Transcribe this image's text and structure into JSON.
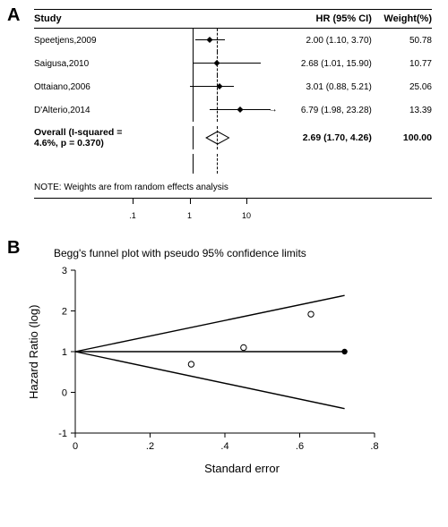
{
  "panelA": {
    "label": "A",
    "headers": {
      "study": "Study",
      "hrci": "HR (95% CI)",
      "weight": "Weight(%)"
    },
    "studies": [
      {
        "name": "Speetjens,2009",
        "hr": 2.0,
        "lo": 1.1,
        "hi": 3.7,
        "hrText": "2.00 (1.10, 3.70)",
        "weight": "50.78"
      },
      {
        "name": "Saigusa,2010",
        "hr": 2.68,
        "lo": 1.01,
        "hi": 15.9,
        "hrText": "2.68 (1.01, 15.90)",
        "weight": "10.77"
      },
      {
        "name": "Ottaiano,2006",
        "hr": 3.01,
        "lo": 0.88,
        "hi": 5.21,
        "hrText": "3.01 (0.88, 5.21)",
        "weight": "25.06"
      },
      {
        "name": "D'Alterio,2014",
        "hr": 6.79,
        "lo": 1.98,
        "hi": 23.28,
        "hrText": "6.79 (1.98, 23.28)",
        "weight": "13.39",
        "arrow": true
      }
    ],
    "overall": {
      "label": "Overall  (I-squared = 4.6%, p = 0.370)",
      "hr": 2.69,
      "lo": 1.7,
      "hi": 4.26,
      "hrText": "2.69 (1.70, 4.26)",
      "weight": "100.00"
    },
    "note": "NOTE: Weights are from random effects analysis",
    "axis": {
      "min": 0.1,
      "max": 23,
      "ticks": [
        0.1,
        1,
        10
      ],
      "tickLabels": [
        ".1",
        "1",
        "10"
      ]
    },
    "plot": {
      "widthPx": 150,
      "line_color": "#000000",
      "point_color": "#000000",
      "dash_color": "#000000"
    }
  },
  "panelB": {
    "label": "B",
    "title": "Begg's funnel plot with pseudo 95% confidence limits",
    "ylabel": "Hazard Ratio (log)",
    "xlabel": "Standard error",
    "plot": {
      "widthPx": 390,
      "heightPx": 220,
      "marginLeft": 46,
      "marginRight": 10,
      "marginTop": 8,
      "marginBottom": 30,
      "xlim": [
        0,
        0.8
      ],
      "ylim": [
        -1,
        3
      ],
      "xticks": [
        0,
        0.2,
        0.4,
        0.6,
        0.8
      ],
      "xtickLabels": [
        "0",
        ".2",
        ".4",
        ".6",
        ".8"
      ],
      "yticks": [
        -1,
        0,
        1,
        2,
        3
      ],
      "ytickLabels": [
        "-1",
        "0",
        "1",
        "2",
        "3"
      ],
      "apexY": 1.0,
      "centerEndY": 1.0,
      "upperEndY": 2.38,
      "lowerEndY": -0.4,
      "endX": 0.72,
      "endMarker": true,
      "points": [
        {
          "x": 0.31,
          "y": 0.69
        },
        {
          "x": 0.45,
          "y": 1.1
        },
        {
          "x": 0.63,
          "y": 1.92
        }
      ],
      "line_color": "#000000",
      "point_stroke": "#000000",
      "point_fill": "none",
      "point_r": 3.2,
      "tick_fontsize": 11
    }
  }
}
